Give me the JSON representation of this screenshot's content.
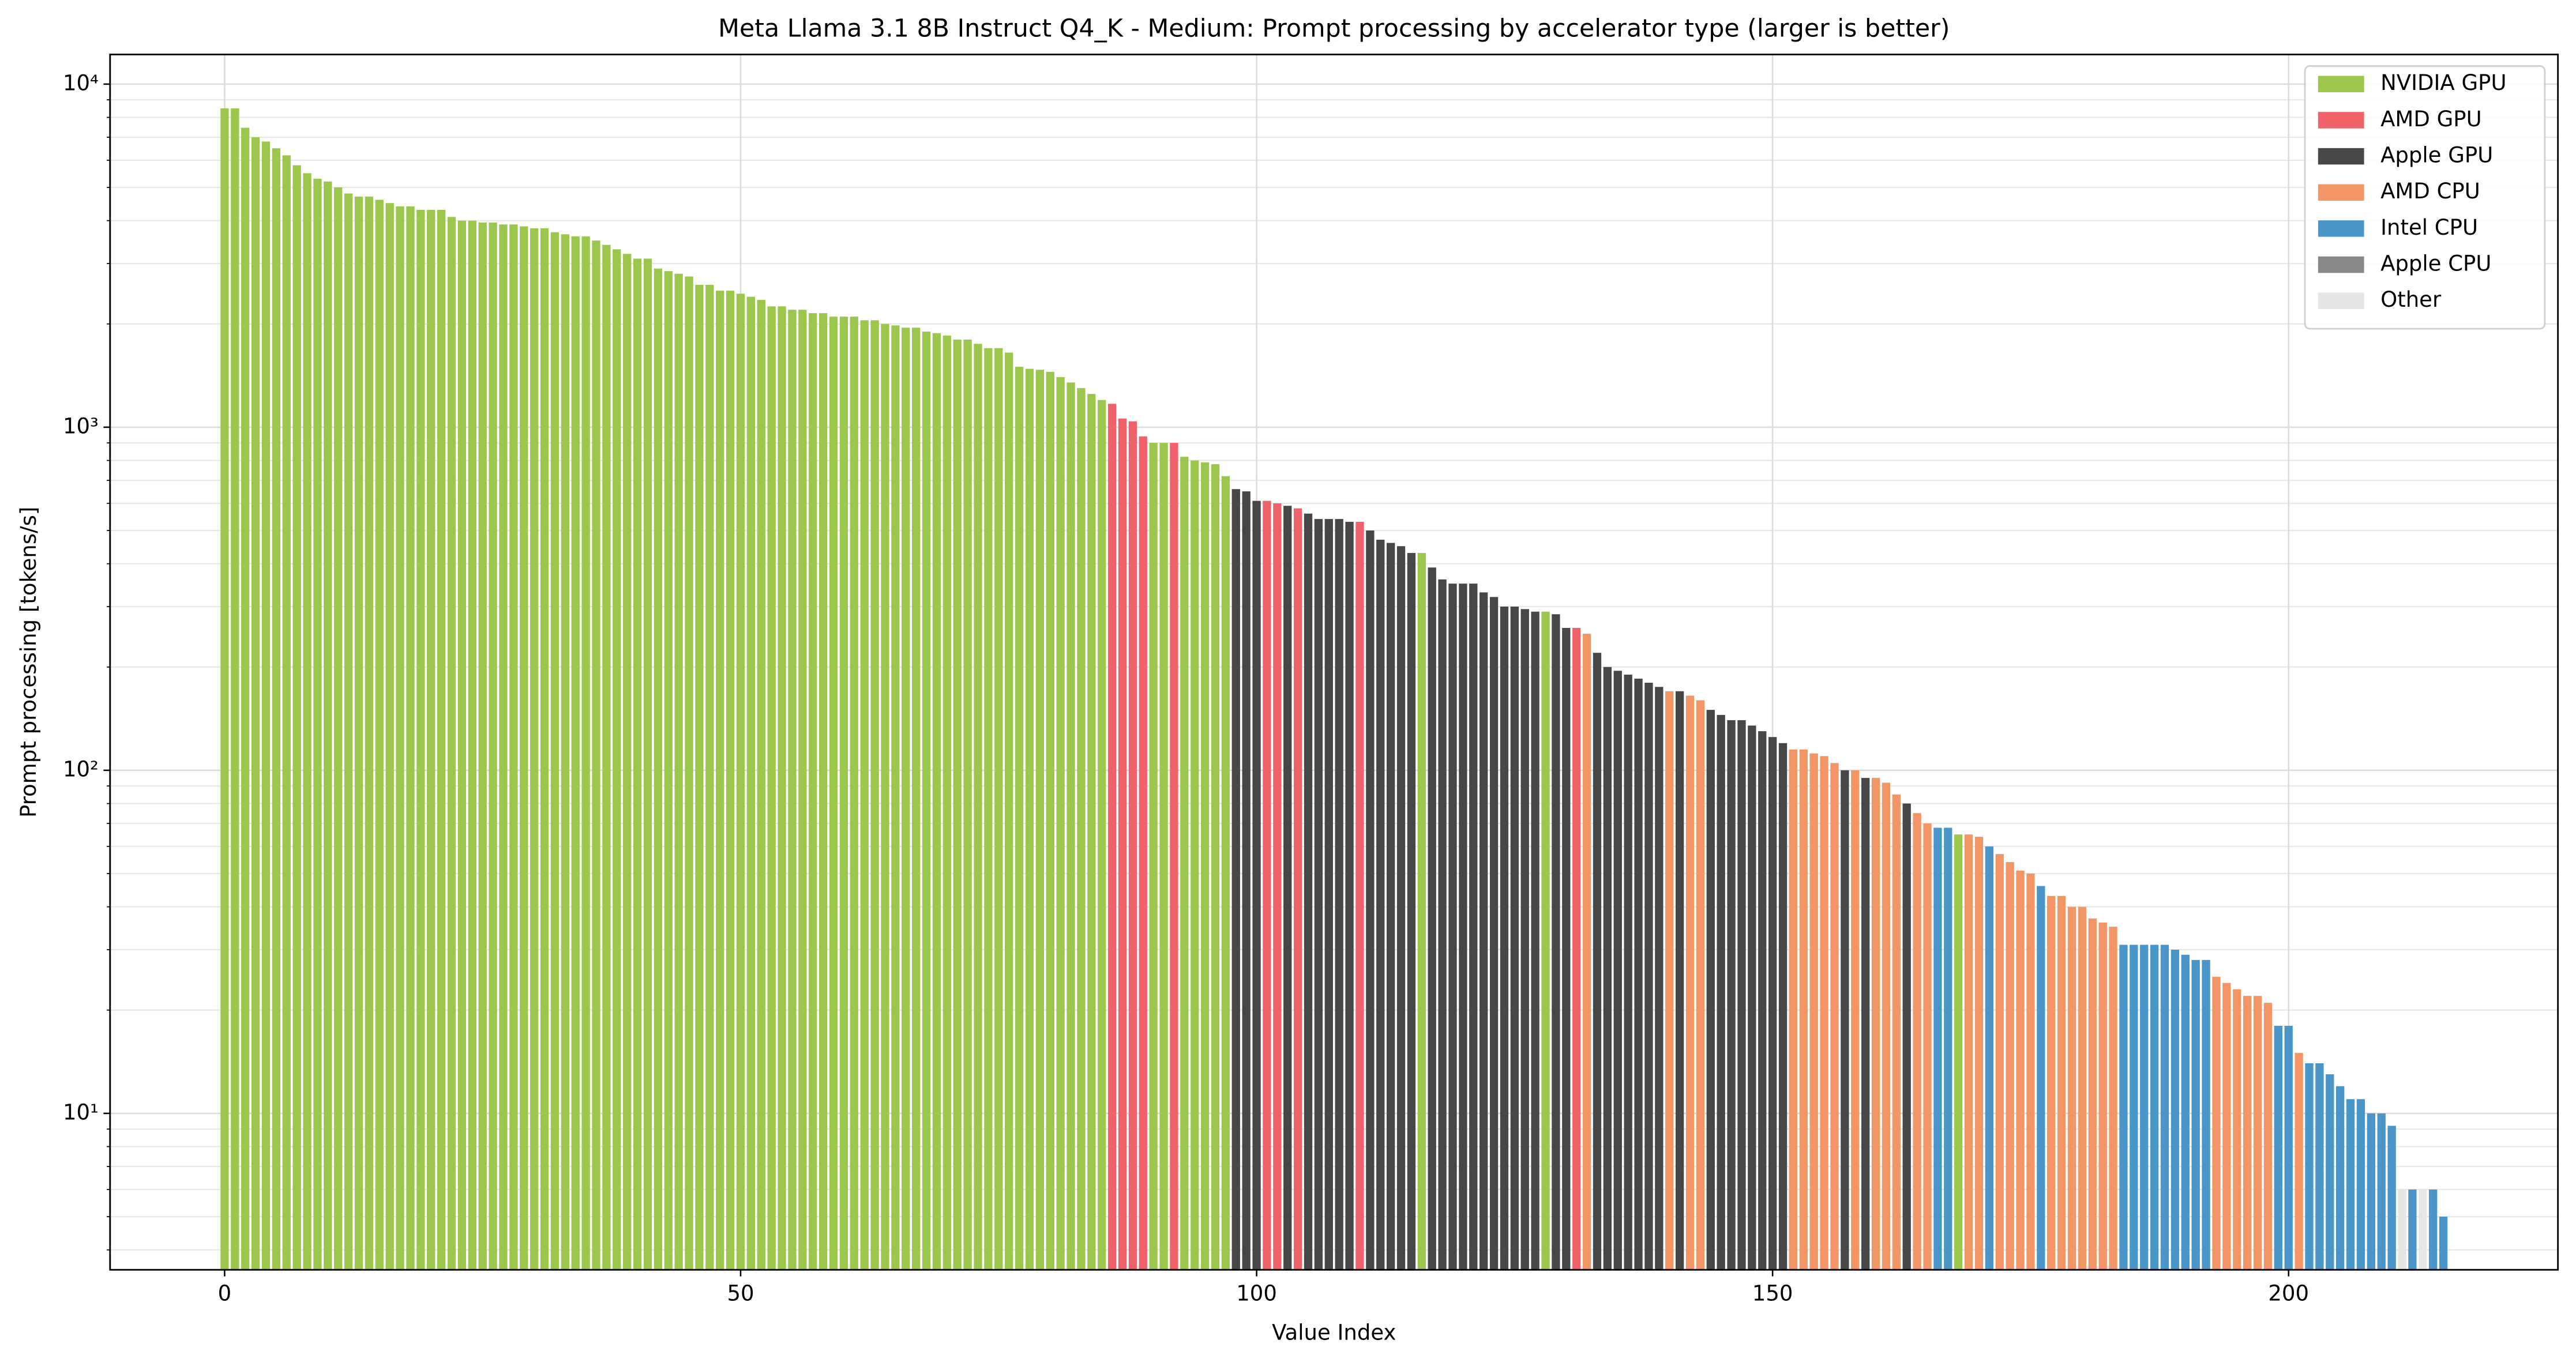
{
  "chart_data": {
    "type": "bar",
    "title": "Meta Llama 3.1 8B Instruct Q4_K - Medium: Prompt processing by accelerator type (larger is better)",
    "xlabel": "Value Index",
    "ylabel": "Prompt processing [tokens/s]",
    "xlim": [
      -11.1,
      226.1
    ],
    "xticks": [
      0,
      50,
      100,
      150,
      200
    ],
    "ylim": [
      3.5,
      12200
    ],
    "yscale": "log",
    "yticks": [
      {
        "value": 10,
        "label": "10¹"
      },
      {
        "value": 100,
        "label": "10²"
      },
      {
        "value": 1000,
        "label": "10³"
      },
      {
        "value": 10000,
        "label": "10⁴"
      }
    ],
    "yminorticks": [
      4,
      5,
      6,
      7,
      8,
      9,
      20,
      30,
      40,
      50,
      60,
      70,
      80,
      90,
      200,
      300,
      400,
      500,
      600,
      700,
      800,
      900,
      2000,
      3000,
      4000,
      5000,
      6000,
      7000,
      8000,
      9000
    ],
    "grid": true,
    "legend": "upper right",
    "series": [
      {
        "name": "NVIDIA GPU",
        "color": "#9bc84c",
        "x": [
          0,
          1,
          2,
          3,
          4,
          5,
          6,
          7,
          8,
          9,
          10,
          11,
          12,
          13,
          14,
          15,
          16,
          17,
          18,
          19,
          20,
          21,
          22,
          23,
          24,
          25,
          26,
          27,
          28,
          29,
          30,
          31,
          32,
          33,
          34,
          35,
          36,
          37,
          38,
          39,
          40,
          41,
          42,
          43,
          44,
          45,
          46,
          47,
          48,
          49,
          50,
          51,
          52,
          53,
          54,
          55,
          56,
          57,
          58,
          59,
          60,
          61,
          62,
          63,
          64,
          65,
          66,
          67,
          68,
          69,
          70,
          71,
          72,
          73,
          74,
          75,
          76,
          77,
          78,
          79,
          80,
          81,
          82,
          83,
          84,
          85,
          90,
          91,
          93,
          94,
          95,
          96,
          97,
          116,
          128,
          168
        ],
        "values": [
          8500,
          8500,
          7460,
          7000,
          6800,
          6500,
          6200,
          5800,
          5500,
          5300,
          5200,
          5000,
          4800,
          4700,
          4700,
          4600,
          4500,
          4400,
          4400,
          4300,
          4300,
          4300,
          4100,
          4000,
          4000,
          3950,
          3950,
          3900,
          3900,
          3850,
          3800,
          3800,
          3700,
          3650,
          3600,
          3600,
          3500,
          3400,
          3300,
          3200,
          3100,
          3100,
          2900,
          2850,
          2800,
          2750,
          2600,
          2600,
          2500,
          2500,
          2450,
          2400,
          2350,
          2250,
          2250,
          2200,
          2200,
          2150,
          2150,
          2100,
          2100,
          2100,
          2050,
          2050,
          2000,
          1980,
          1950,
          1950,
          1900,
          1880,
          1850,
          1800,
          1800,
          1750,
          1700,
          1700,
          1650,
          1500,
          1480,
          1470,
          1450,
          1400,
          1350,
          1300,
          1250,
          1200,
          900,
          900,
          820,
          800,
          790,
          780,
          720,
          430,
          290,
          65
        ]
      },
      {
        "name": "AMD GPU",
        "color": "#f0626a",
        "x": [
          86,
          87,
          88,
          89,
          92,
          101,
          102,
          104,
          110,
          131
        ],
        "values": [
          1170,
          1060,
          1040,
          940,
          900,
          610,
          600,
          580,
          530,
          260
        ]
      },
      {
        "name": "Apple GPU",
        "color": "#474747",
        "x": [
          98,
          99,
          100,
          103,
          105,
          106,
          107,
          108,
          109,
          111,
          112,
          113,
          114,
          115,
          117,
          118,
          119,
          120,
          121,
          122,
          123,
          124,
          125,
          126,
          127,
          129,
          130,
          133,
          134,
          135,
          136,
          137,
          138,
          139,
          141,
          144,
          145,
          146,
          147,
          148,
          149,
          150,
          151,
          157,
          159,
          163
        ],
        "values": [
          660,
          650,
          610,
          590,
          560,
          540,
          540,
          540,
          530,
          500,
          470,
          460,
          450,
          430,
          390,
          360,
          350,
          350,
          350,
          330,
          320,
          300,
          300,
          295,
          290,
          285,
          260,
          220,
          200,
          195,
          190,
          185,
          180,
          175,
          170,
          150,
          145,
          140,
          140,
          135,
          130,
          125,
          120,
          100,
          95,
          80
        ]
      },
      {
        "name": "AMD CPU",
        "color": "#f29666",
        "x": [
          132,
          140,
          142,
          143,
          152,
          153,
          154,
          155,
          156,
          158,
          160,
          161,
          162,
          164,
          165,
          169,
          170,
          172,
          173,
          174,
          175,
          177,
          178,
          179,
          180,
          181,
          182,
          183,
          193,
          194,
          195,
          196,
          197,
          198,
          201
        ],
        "values": [
          250,
          170,
          165,
          160,
          115,
          115,
          112,
          110,
          105,
          100,
          95,
          92,
          85,
          75,
          70,
          65,
          64,
          57,
          54,
          51,
          50,
          43,
          43,
          40,
          40,
          37,
          36,
          35,
          25,
          24,
          23,
          22,
          22,
          21,
          15
        ]
      },
      {
        "name": "Intel CPU",
        "color": "#4a96c9",
        "x": [
          166,
          167,
          171,
          176,
          184,
          185,
          186,
          187,
          188,
          189,
          190,
          191,
          192,
          199,
          200,
          202,
          203,
          204,
          205,
          206,
          207,
          208,
          209,
          210,
          212,
          214,
          215
        ],
        "values": [
          68,
          68,
          60,
          46,
          31,
          31,
          31,
          31,
          31,
          30,
          29,
          28,
          28,
          18,
          18,
          14,
          14,
          13,
          12,
          11,
          11,
          10,
          10,
          9.2,
          6,
          6,
          5
        ]
      },
      {
        "name": "Apple CPU",
        "color": "#888888",
        "x": [],
        "values": []
      },
      {
        "name": "Other",
        "color": "#e6e6e6",
        "x": [
          211,
          213
        ],
        "values": [
          6,
          6
        ]
      }
    ]
  }
}
